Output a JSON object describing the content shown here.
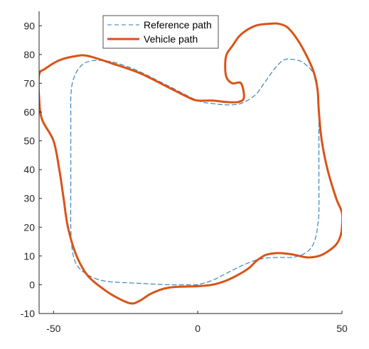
{
  "chart_data": {
    "type": "line",
    "title": "",
    "xlabel": "",
    "ylabel": "",
    "xlim": [
      -55,
      50
    ],
    "ylim": [
      -10,
      95
    ],
    "xticks": [
      -50,
      0,
      50
    ],
    "yticks": [
      -10,
      0,
      10,
      20,
      30,
      40,
      50,
      60,
      70,
      80,
      90
    ],
    "grid": false,
    "legend": {
      "placement": "top-center"
    },
    "series": [
      {
        "name": "Reference path",
        "color": "#2C7BB6",
        "style": "dashed",
        "x": [
          0,
          -10,
          -20,
          -30,
          -35,
          -39,
          -42,
          -43.5,
          -44,
          -44,
          -44,
          -44,
          -44,
          -43.5,
          -42,
          -40,
          -38,
          -35,
          -30,
          -25,
          -20,
          -10,
          0,
          5,
          10,
          15,
          20,
          23,
          27,
          30,
          33,
          36,
          39,
          41,
          41.5,
          42,
          42,
          42,
          42,
          42,
          41.5,
          41,
          40,
          38,
          35,
          32,
          28,
          24,
          20,
          15,
          10,
          5,
          0
        ],
        "y": [
          0,
          0,
          0.5,
          1,
          2,
          4,
          7,
          12,
          20,
          35,
          50,
          60,
          65,
          70,
          74,
          76.5,
          77.5,
          78,
          77.5,
          76,
          74,
          69,
          64,
          63,
          62.5,
          63,
          66,
          70,
          75.5,
          78.2,
          78.3,
          77.5,
          75,
          72,
          68,
          63,
          55,
          45,
          35,
          25,
          20,
          17,
          14,
          11.5,
          10,
          9.5,
          9.5,
          9.3,
          8.5,
          6.5,
          4,
          1.5,
          0
        ]
      },
      {
        "name": "Vehicle path",
        "color": "#D95319",
        "style": "solid",
        "x": [
          0,
          -10,
          -16,
          -20,
          -23,
          -27,
          -32,
          -38,
          -42,
          -45,
          -46.5,
          -48,
          -50,
          -54,
          -55,
          -55,
          -53,
          -48,
          -42,
          -38,
          -30,
          -20,
          -10,
          -3,
          0,
          5,
          10,
          14,
          16,
          15,
          12,
          10,
          9.5,
          10,
          12,
          15,
          20,
          25,
          28,
          31,
          34,
          37,
          40,
          41.5,
          42,
          43,
          45,
          48,
          50,
          50,
          49.5,
          48,
          45,
          42,
          38,
          33,
          28,
          24,
          22,
          20,
          18,
          15,
          10,
          5,
          0
        ],
        "y": [
          -0.5,
          -1,
          -3,
          -5.5,
          -6.5,
          -5,
          -2,
          3,
          10,
          20,
          30,
          40,
          50,
          57.5,
          65,
          73,
          75,
          78,
          79.5,
          79.5,
          77,
          73.5,
          68.5,
          65,
          64,
          64,
          63.5,
          63.5,
          65,
          70,
          70,
          72,
          76,
          80,
          83,
          87,
          90,
          90.7,
          90.7,
          89.5,
          86,
          81,
          74.5,
          68,
          60,
          50,
          40,
          30,
          25,
          20,
          17,
          14,
          11.5,
          10,
          9.5,
          10.5,
          11,
          10.5,
          9.5,
          8,
          6,
          4,
          1.5,
          0,
          -0.5
        ]
      }
    ]
  }
}
